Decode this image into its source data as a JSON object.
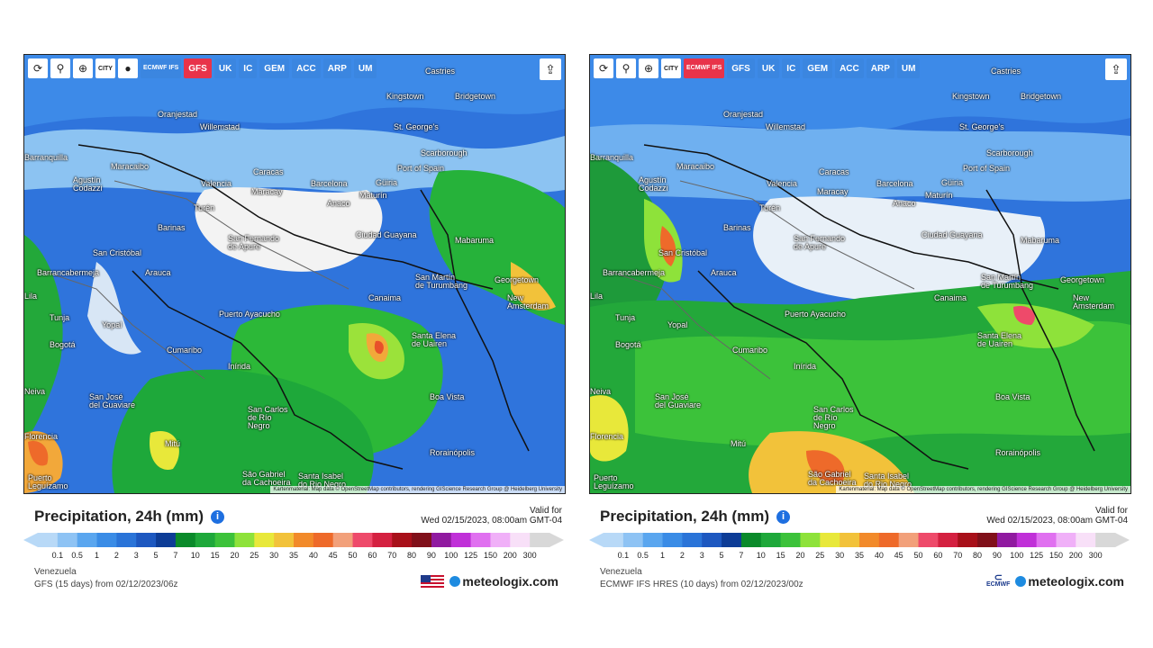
{
  "toolbar": {
    "city_label": "CITY",
    "models": [
      "ECMWF IFS",
      "GFS",
      "UK",
      "IC",
      "GEM",
      "ACC",
      "ARP",
      "UM"
    ]
  },
  "icons": [
    "refresh-icon",
    "location-pin-icon",
    "zoom-icon",
    "city-icon",
    "dot-icon",
    "share-icon",
    "info-icon"
  ],
  "panels": [
    {
      "active_model": "GFS",
      "title": "Precipitation, 24h (mm)",
      "valid_label": "Valid for",
      "valid_time": "Wed 02/15/2023, 08:00am GMT-04",
      "region": "Venezuela",
      "run": "GFS (15 days) from 02/12/2023/06z",
      "attribution": "Kartenmaterial: Map data © OpenStreetMap contributors, rendering GIScience Research Group @ Heidelberg University",
      "brand": "meteologix.com"
    },
    {
      "active_model": "ECMWF IFS",
      "title": "Precipitation, 24h (mm)",
      "valid_label": "Valid for",
      "valid_time": "Wed 02/15/2023, 08:00am GMT-04",
      "region": "Venezuela",
      "run": "ECMWF IFS HRES (10 days) from 02/12/2023/00z",
      "attribution": "Kartenmaterial: Map data © OpenStreetMap contributors, rendering GIScience Research Group @ Heidelberg University",
      "brand": "meteologix.com",
      "partner_logo": "ECMWF"
    }
  ],
  "cities": [
    {
      "name": "Castries"
    },
    {
      "name": "Kingstown"
    },
    {
      "name": "Bridgetown"
    },
    {
      "name": "Oranjestad"
    },
    {
      "name": "Willemstad"
    },
    {
      "name": "St. George's"
    },
    {
      "name": "Scarborough"
    },
    {
      "name": "Barranquilla"
    },
    {
      "name": "Maracaibo"
    },
    {
      "name": "Caracas"
    },
    {
      "name": "Port of Spain"
    },
    {
      "name": "Agustín\nCodazzi"
    },
    {
      "name": "Valencia"
    },
    {
      "name": "Maracay"
    },
    {
      "name": "Barcelona"
    },
    {
      "name": "Güiria"
    },
    {
      "name": "Maturín"
    },
    {
      "name": "Turén"
    },
    {
      "name": "Anaco"
    },
    {
      "name": "Barinas"
    },
    {
      "name": "San Fernando\nde Apure"
    },
    {
      "name": "Ciudad Guayana"
    },
    {
      "name": "Mabaruma"
    },
    {
      "name": "San Cristóbal"
    },
    {
      "name": "Barrancabermeja"
    },
    {
      "name": "Arauca"
    },
    {
      "name": "San Martín\nde Turumbang"
    },
    {
      "name": "Georgetown"
    },
    {
      "name": "New Amsterdam"
    },
    {
      "name": "Canaima"
    },
    {
      "name": "Tunja"
    },
    {
      "name": "Yopal"
    },
    {
      "name": "Puerto Ayacucho"
    },
    {
      "name": "Bogotá"
    },
    {
      "name": "Cumaribo"
    },
    {
      "name": "Santa Elena\nde Uairen"
    },
    {
      "name": "Inírida"
    },
    {
      "name": "San José\ndel Guaviare"
    },
    {
      "name": "Boa Vista"
    },
    {
      "name": "San Carlos\nde Río\nNegro"
    },
    {
      "name": "Mitú"
    },
    {
      "name": "Rorainópolis"
    },
    {
      "name": "São Gabriel\nda Cachoeira"
    },
    {
      "name": "Santa Isabel\ndo Rio Negro"
    },
    {
      "name": "Puerto\nLeguízamo"
    },
    {
      "name": "Neiva"
    },
    {
      "name": "Lila"
    },
    {
      "name": "Florencia"
    }
  ],
  "legend": {
    "values": [
      "0.1",
      "0.5",
      "1",
      "2",
      "3",
      "5",
      "7",
      "10",
      "15",
      "20",
      "25",
      "30",
      "35",
      "40",
      "45",
      "50",
      "60",
      "70",
      "80",
      "90",
      "100",
      "125",
      "150",
      "200",
      "300"
    ],
    "colors": [
      "#b8d9f7",
      "#8ec3f4",
      "#5aa6ef",
      "#3a8ce6",
      "#2a74d8",
      "#1d58c0",
      "#0d3c96",
      "#0a8a2a",
      "#1ea83a",
      "#3cc23a",
      "#8ee23a",
      "#e8e83a",
      "#f2c23a",
      "#f28a2a",
      "#ee6a2a",
      "#f2a07a",
      "#ee4a6a",
      "#d42040",
      "#a8101a",
      "#80101a",
      "#901aa0",
      "#c030d8",
      "#e070f0",
      "#f0b0f8",
      "#f8e0f8",
      "#d8d8d8"
    ]
  }
}
